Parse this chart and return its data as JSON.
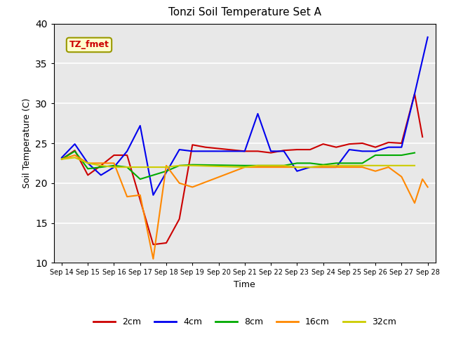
{
  "title": "Tonzi Soil Temperature Set A",
  "xlabel": "Time",
  "ylabel": "Soil Temperature (C)",
  "annotation": "TZ_fmet",
  "ylim": [
    10,
    40
  ],
  "plot_bg": "#e8e8e8",
  "fig_bg": "#ffffff",
  "x_tick_labels": [
    "Sep 14",
    "Sep 15",
    "Sep 16",
    "Sep 17",
    "Sep 18",
    "Sep 19",
    "Sep 20",
    "Sep 21",
    "Sep 22",
    "Sep 23",
    "Sep 24",
    "Sep 25",
    "Sep 26",
    "Sep 27",
    "Sep 28"
  ],
  "series": {
    "2cm": {
      "color": "#cc0000",
      "x": [
        0,
        0.5,
        1.0,
        1.5,
        2.0,
        2.5,
        3.5,
        4.0,
        4.5,
        5.0,
        5.5,
        7.0,
        7.5,
        8.0,
        8.5,
        9.0,
        9.5,
        10.0,
        10.5,
        11.0,
        11.5,
        12.0,
        12.5,
        13.0,
        13.5,
        13.8
      ],
      "y": [
        23.0,
        24.1,
        21.0,
        22.2,
        23.5,
        23.5,
        12.3,
        12.5,
        15.5,
        24.8,
        24.5,
        24.0,
        24.0,
        23.8,
        24.1,
        24.2,
        24.2,
        24.9,
        24.5,
        24.9,
        25.0,
        24.5,
        25.1,
        25.0,
        31.2,
        25.8
      ]
    },
    "4cm": {
      "color": "#0000ee",
      "x": [
        0,
        0.5,
        1.0,
        1.5,
        2.0,
        2.5,
        3.0,
        3.5,
        4.5,
        5.0,
        7.0,
        7.5,
        8.0,
        8.5,
        9.0,
        9.5,
        10.0,
        10.5,
        11.0,
        11.5,
        12.0,
        12.5,
        13.0,
        13.5,
        14.0
      ],
      "y": [
        23.2,
        24.9,
        22.5,
        21.0,
        22.0,
        24.0,
        27.2,
        18.5,
        24.2,
        24.0,
        24.0,
        28.7,
        24.0,
        24.0,
        21.5,
        22.0,
        22.0,
        22.0,
        24.2,
        24.0,
        24.0,
        24.5,
        24.5,
        31.2,
        38.3
      ]
    },
    "8cm": {
      "color": "#00aa00",
      "x": [
        0,
        0.5,
        1.0,
        1.5,
        2.0,
        2.5,
        3.0,
        3.5,
        4.0,
        4.5,
        5.0,
        7.0,
        7.5,
        8.0,
        8.5,
        9.0,
        9.5,
        10.0,
        10.5,
        11.0,
        11.5,
        12.0,
        12.5,
        13.0,
        13.5
      ],
      "y": [
        23.0,
        24.0,
        21.8,
        22.0,
        22.2,
        22.0,
        20.5,
        21.0,
        21.5,
        22.2,
        22.3,
        22.2,
        22.2,
        22.2,
        22.2,
        22.5,
        22.5,
        22.3,
        22.5,
        22.5,
        22.5,
        23.5,
        23.5,
        23.5,
        23.8
      ]
    },
    "16cm": {
      "color": "#ff8800",
      "x": [
        0,
        0.5,
        1.0,
        1.5,
        2.0,
        2.5,
        3.0,
        3.5,
        4.0,
        4.5,
        5.0,
        7.0,
        7.5,
        8.0,
        8.5,
        9.0,
        9.5,
        10.0,
        10.5,
        11.0,
        11.5,
        12.0,
        12.5,
        13.0,
        13.5,
        13.8,
        14.0
      ],
      "y": [
        23.0,
        23.5,
        22.5,
        22.5,
        22.5,
        18.3,
        18.5,
        10.5,
        22.2,
        20.0,
        19.5,
        22.0,
        22.0,
        22.0,
        22.0,
        22.0,
        22.0,
        22.0,
        22.0,
        22.0,
        22.0,
        21.5,
        22.0,
        20.8,
        17.5,
        20.5,
        19.5
      ]
    },
    "32cm": {
      "color": "#cccc00",
      "x": [
        0,
        0.5,
        1.0,
        1.5,
        2.0,
        2.5,
        3.0,
        3.5,
        4.0,
        4.5,
        5.0,
        7.0,
        7.5,
        8.0,
        8.5,
        9.0,
        9.5,
        10.0,
        10.5,
        11.0,
        11.5,
        12.0,
        12.5,
        13.0,
        13.5
      ],
      "y": [
        23.0,
        23.2,
        22.5,
        22.2,
        22.0,
        22.0,
        22.0,
        22.0,
        22.0,
        22.2,
        22.2,
        22.0,
        22.2,
        22.2,
        22.2,
        22.0,
        22.0,
        22.2,
        22.2,
        22.2,
        22.2,
        22.2,
        22.2,
        22.2,
        22.2
      ]
    }
  },
  "legend_order": [
    "2cm",
    "4cm",
    "8cm",
    "16cm",
    "32cm"
  ]
}
